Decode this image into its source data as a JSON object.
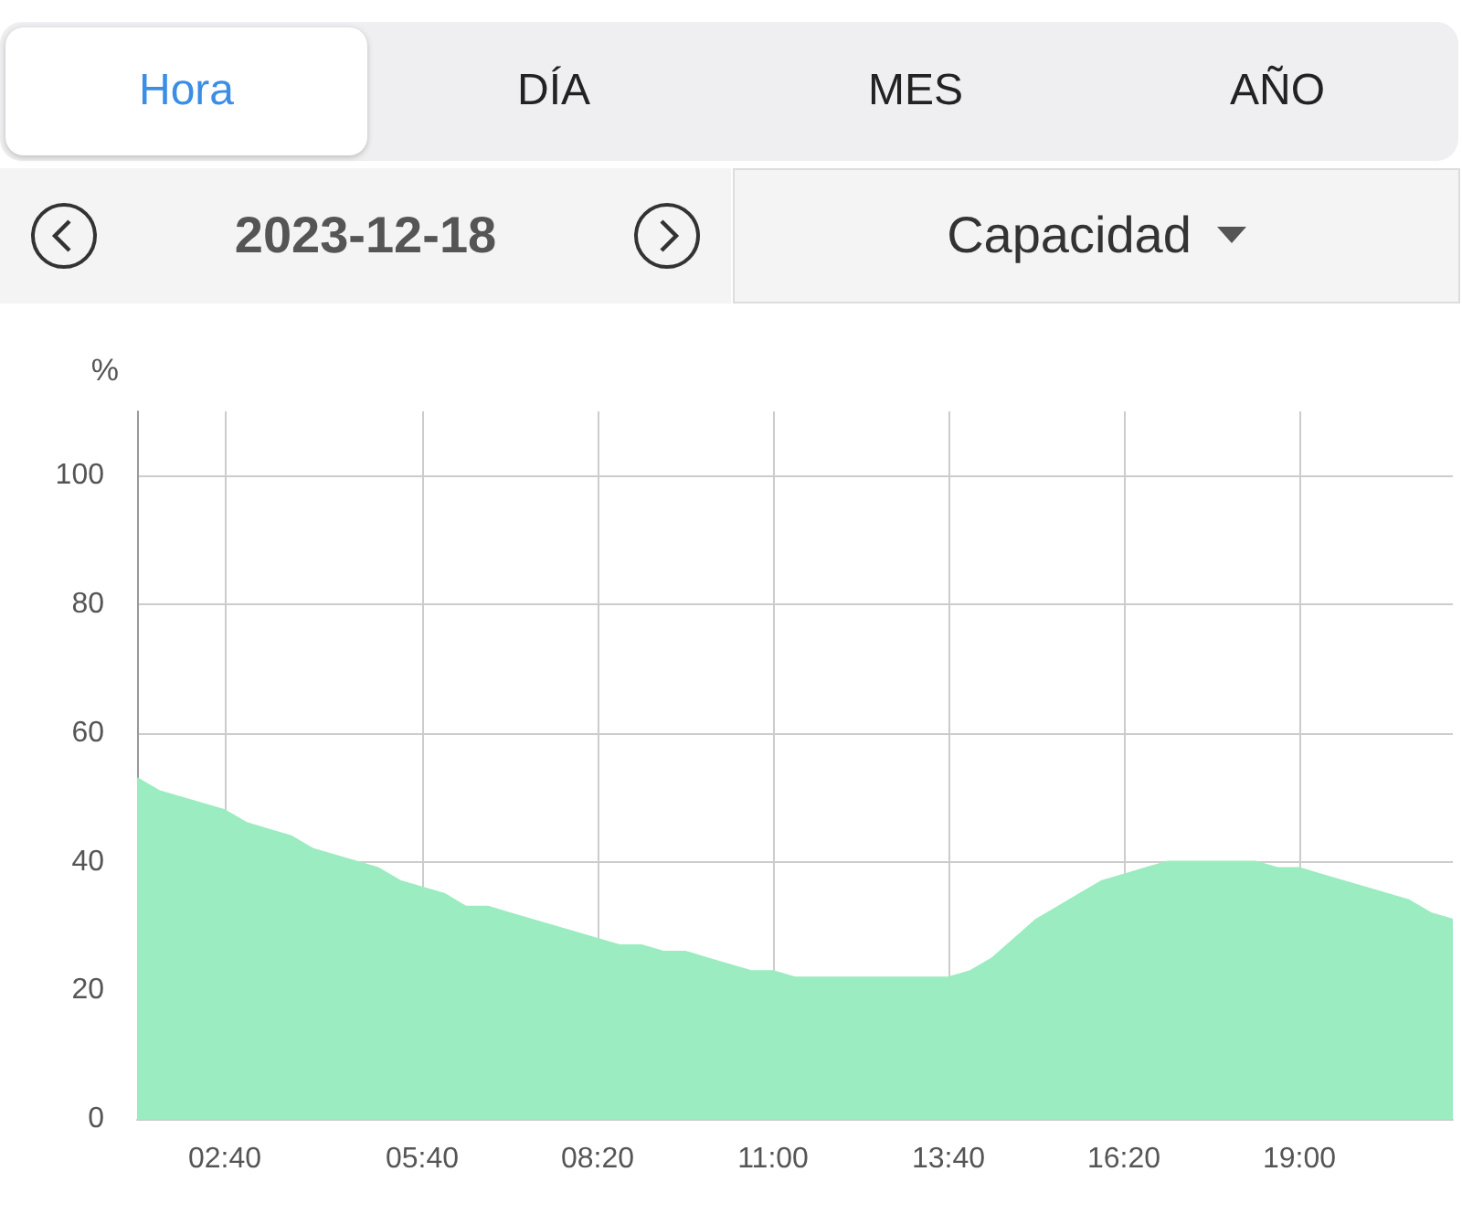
{
  "chart_data": {
    "type": "area",
    "ylabel": "%",
    "annotations": [
      "Hora",
      "DÍA",
      "MES",
      "AÑO",
      "2023-12-18",
      "Capacidad"
    ],
    "categories": [
      null,
      null,
      null,
      null,
      "02:40",
      null,
      null,
      null,
      null,
      null,
      null,
      null,
      null,
      "05:40",
      null,
      null,
      null,
      null,
      null,
      null,
      null,
      "08:20",
      null,
      null,
      null,
      null,
      null,
      null,
      null,
      "11:00",
      null,
      null,
      null,
      null,
      null,
      null,
      null,
      "13:40",
      null,
      null,
      null,
      null,
      null,
      null,
      null,
      "16:20",
      null,
      null,
      null,
      null,
      null,
      null,
      null,
      "19:00",
      null,
      null,
      null,
      null,
      null,
      null,
      null
    ],
    "series": [
      {
        "color": "#9becc0",
        "values": [
          53,
          51,
          50,
          49,
          48,
          46,
          45,
          44,
          42,
          41,
          40,
          39,
          37,
          36,
          35,
          33,
          33,
          32,
          31,
          30,
          29,
          28,
          27,
          27,
          26,
          26,
          25,
          24,
          23,
          23,
          22,
          22,
          22,
          22,
          22,
          22,
          22,
          22,
          23,
          25,
          28,
          31,
          33,
          35,
          37,
          38,
          39,
          40,
          40,
          40,
          40,
          40,
          39,
          39,
          38,
          37,
          36,
          35,
          34,
          32,
          31
        ]
      }
    ],
    "ylim": [
      0,
      110
    ],
    "yticks": [
      0,
      20,
      40,
      60,
      80,
      100
    ],
    "grid": true,
    "marker": "none"
  }
}
